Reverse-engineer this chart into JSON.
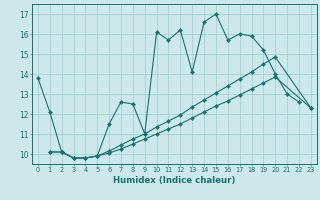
{
  "bg_color": "#cce8ea",
  "line_color": "#1a7070",
  "grid_color": "#99cccc",
  "xlabel": "Humidex (Indice chaleur)",
  "xticks": [
    0,
    1,
    2,
    3,
    4,
    5,
    6,
    7,
    8,
    9,
    10,
    11,
    12,
    13,
    14,
    15,
    16,
    17,
    18,
    19,
    20,
    21,
    22,
    23
  ],
  "yticks": [
    10,
    11,
    12,
    13,
    14,
    15,
    16,
    17
  ],
  "curve1_x": [
    0,
    1,
    2,
    3,
    4,
    5,
    6,
    7,
    8,
    9,
    10,
    11,
    12,
    13,
    14,
    15,
    16,
    17,
    18,
    19,
    20,
    21,
    22
  ],
  "curve1_y": [
    13.8,
    12.1,
    10.1,
    9.8,
    9.8,
    9.9,
    11.5,
    12.6,
    12.5,
    11.0,
    16.1,
    15.7,
    16.2,
    14.1,
    16.6,
    17.0,
    15.7,
    16.0,
    15.9,
    15.2,
    14.0,
    13.0,
    12.6
  ],
  "curve2_x": [
    1,
    2,
    3,
    4,
    5,
    6,
    7,
    8,
    9,
    10,
    11,
    12,
    13,
    14,
    15,
    16,
    17,
    18,
    19,
    20,
    23
  ],
  "curve2_y": [
    10.1,
    10.1,
    9.8,
    9.8,
    9.9,
    10.15,
    10.45,
    10.75,
    11.0,
    11.35,
    11.65,
    11.95,
    12.35,
    12.7,
    13.05,
    13.4,
    13.75,
    14.1,
    14.5,
    14.85,
    12.3
  ],
  "curve3_x": [
    1,
    2,
    3,
    4,
    5,
    6,
    7,
    8,
    9,
    10,
    11,
    12,
    13,
    14,
    15,
    16,
    17,
    18,
    19,
    20,
    23
  ],
  "curve3_y": [
    10.1,
    10.1,
    9.8,
    9.8,
    9.9,
    10.05,
    10.25,
    10.5,
    10.75,
    11.0,
    11.25,
    11.5,
    11.8,
    12.1,
    12.4,
    12.65,
    12.95,
    13.25,
    13.55,
    13.85,
    12.3
  ]
}
